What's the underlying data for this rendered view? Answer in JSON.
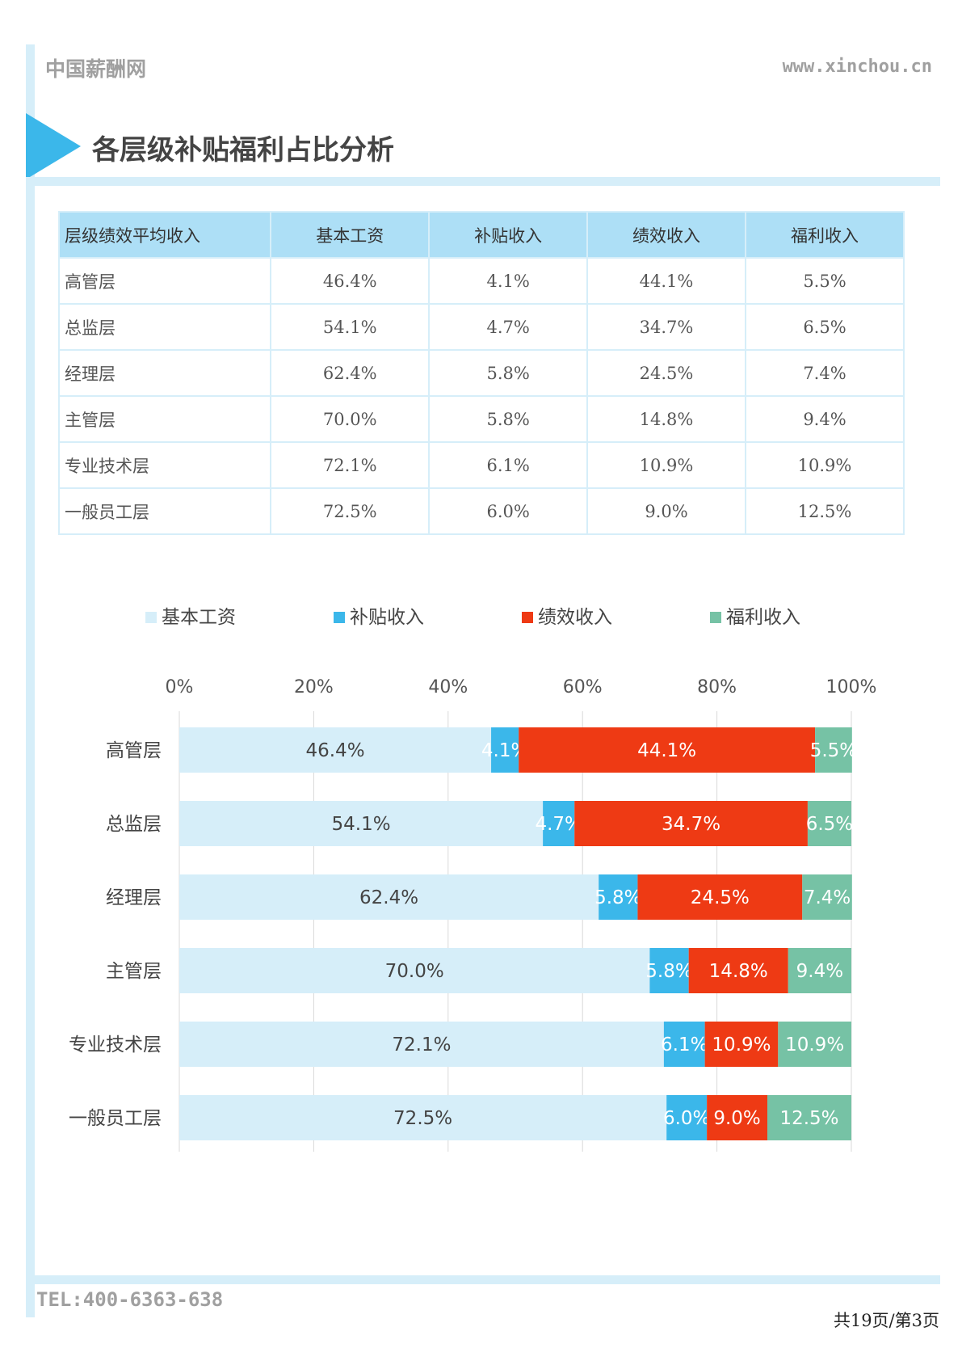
{
  "header": {
    "site_name": "中国薪酬网",
    "site_url": "www.xinchou.cn"
  },
  "page_title": "各层级补贴福利占比分析",
  "table": {
    "headers": [
      "层级绩效平均收入",
      "基本工资",
      "补贴收入",
      "绩效收入",
      "福利收入"
    ],
    "rows": [
      [
        "高管层",
        "46.4%",
        "4.1%",
        "44.1%",
        "5.5%"
      ],
      [
        "总监层",
        "54.1%",
        "4.7%",
        "34.7%",
        "6.5%"
      ],
      [
        "经理层",
        "62.4%",
        "5.8%",
        "24.5%",
        "7.4%"
      ],
      [
        "主管层",
        "70.0%",
        "5.8%",
        "14.8%",
        "9.4%"
      ],
      [
        "专业技术层",
        "72.1%",
        "6.1%",
        "10.9%",
        "10.9%"
      ],
      [
        "一般员工层",
        "72.5%",
        "6.0%",
        "9.0%",
        "12.5%"
      ]
    ]
  },
  "chart_data": {
    "type": "bar",
    "orientation": "horizontal",
    "stacked": true,
    "categories": [
      "高管层",
      "总监层",
      "经理层",
      "主管层",
      "专业技术层",
      "一般员工层"
    ],
    "series": [
      {
        "name": "基本工资",
        "color": "#d6eef9",
        "label_color": "#444444",
        "values": [
          46.4,
          54.1,
          62.4,
          70.0,
          72.1,
          72.5
        ]
      },
      {
        "name": "补贴收入",
        "color": "#3bb7ea",
        "label_color": "#ffffff",
        "values": [
          4.1,
          4.7,
          5.8,
          5.8,
          6.1,
          6.0
        ]
      },
      {
        "name": "绩效收入",
        "color": "#ee3a14",
        "label_color": "#ffffff",
        "values": [
          44.1,
          34.7,
          24.5,
          14.8,
          10.9,
          9.0
        ]
      },
      {
        "name": "福利收入",
        "color": "#76c2a5",
        "label_color": "#ffffff",
        "values": [
          5.5,
          6.5,
          7.4,
          9.4,
          10.9,
          12.5
        ]
      }
    ],
    "x_ticks": [
      "0%",
      "20%",
      "40%",
      "60%",
      "80%",
      "100%"
    ],
    "xlim": [
      0,
      100
    ],
    "grid": true,
    "legend_position": "top"
  },
  "footer": {
    "tel": "TEL:400-6363-638",
    "page": "共19页/第3页"
  }
}
